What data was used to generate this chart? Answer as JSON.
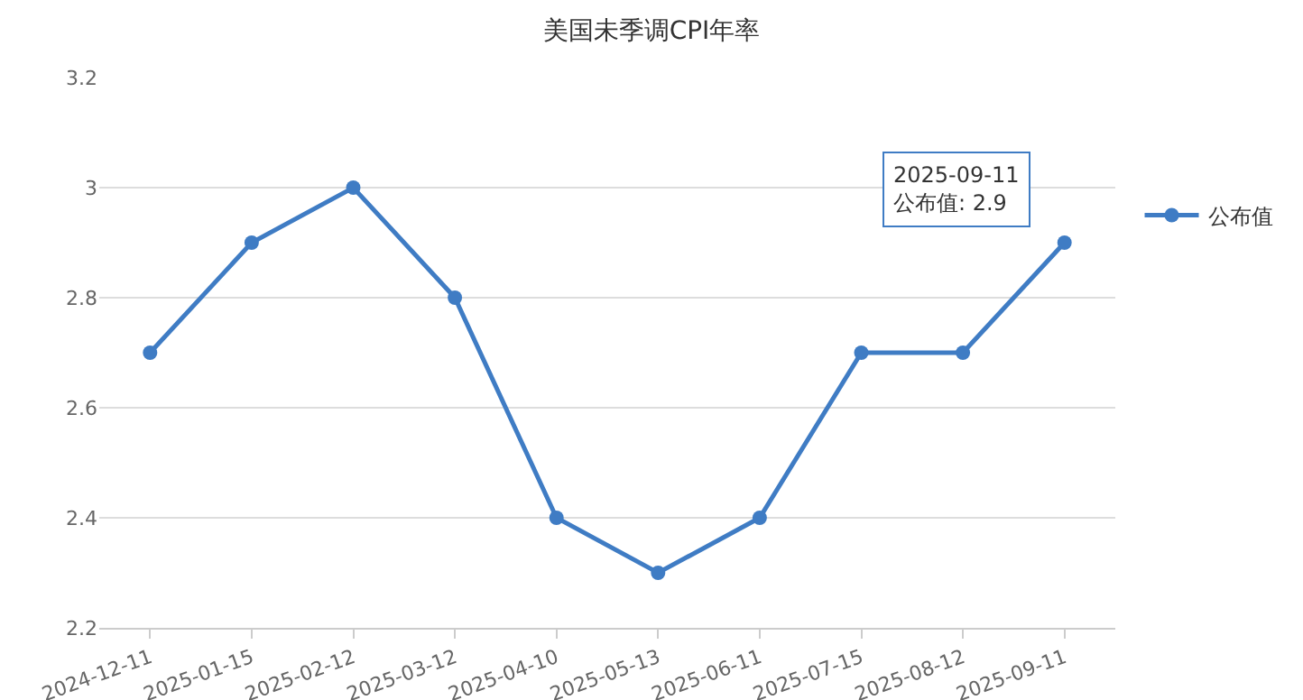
{
  "chart_data": {
    "type": "line",
    "title": "美国未季调CPI年率",
    "categories": [
      "2024-12-11",
      "2025-01-15",
      "2025-02-12",
      "2025-03-12",
      "2025-04-10",
      "2025-05-13",
      "2025-06-11",
      "2025-07-15",
      "2025-08-12",
      "2025-09-11"
    ],
    "series": [
      {
        "name": "公布值",
        "color": "#3f7cc4",
        "values": [
          2.7,
          2.9,
          3.0,
          2.8,
          2.4,
          2.3,
          2.4,
          2.7,
          2.7,
          2.9
        ]
      }
    ],
    "ylim": [
      2.2,
      3.2
    ],
    "yticks": [
      2.2,
      2.4,
      2.6,
      2.8,
      3,
      3.2
    ],
    "grid": "y",
    "legend": "right",
    "marker": "circle",
    "line_style": "solid",
    "annotations": [
      {
        "text": "2025-09-11\n公布值: 2.9",
        "x": "2025-09-11",
        "y": 2.9
      }
    ]
  }
}
